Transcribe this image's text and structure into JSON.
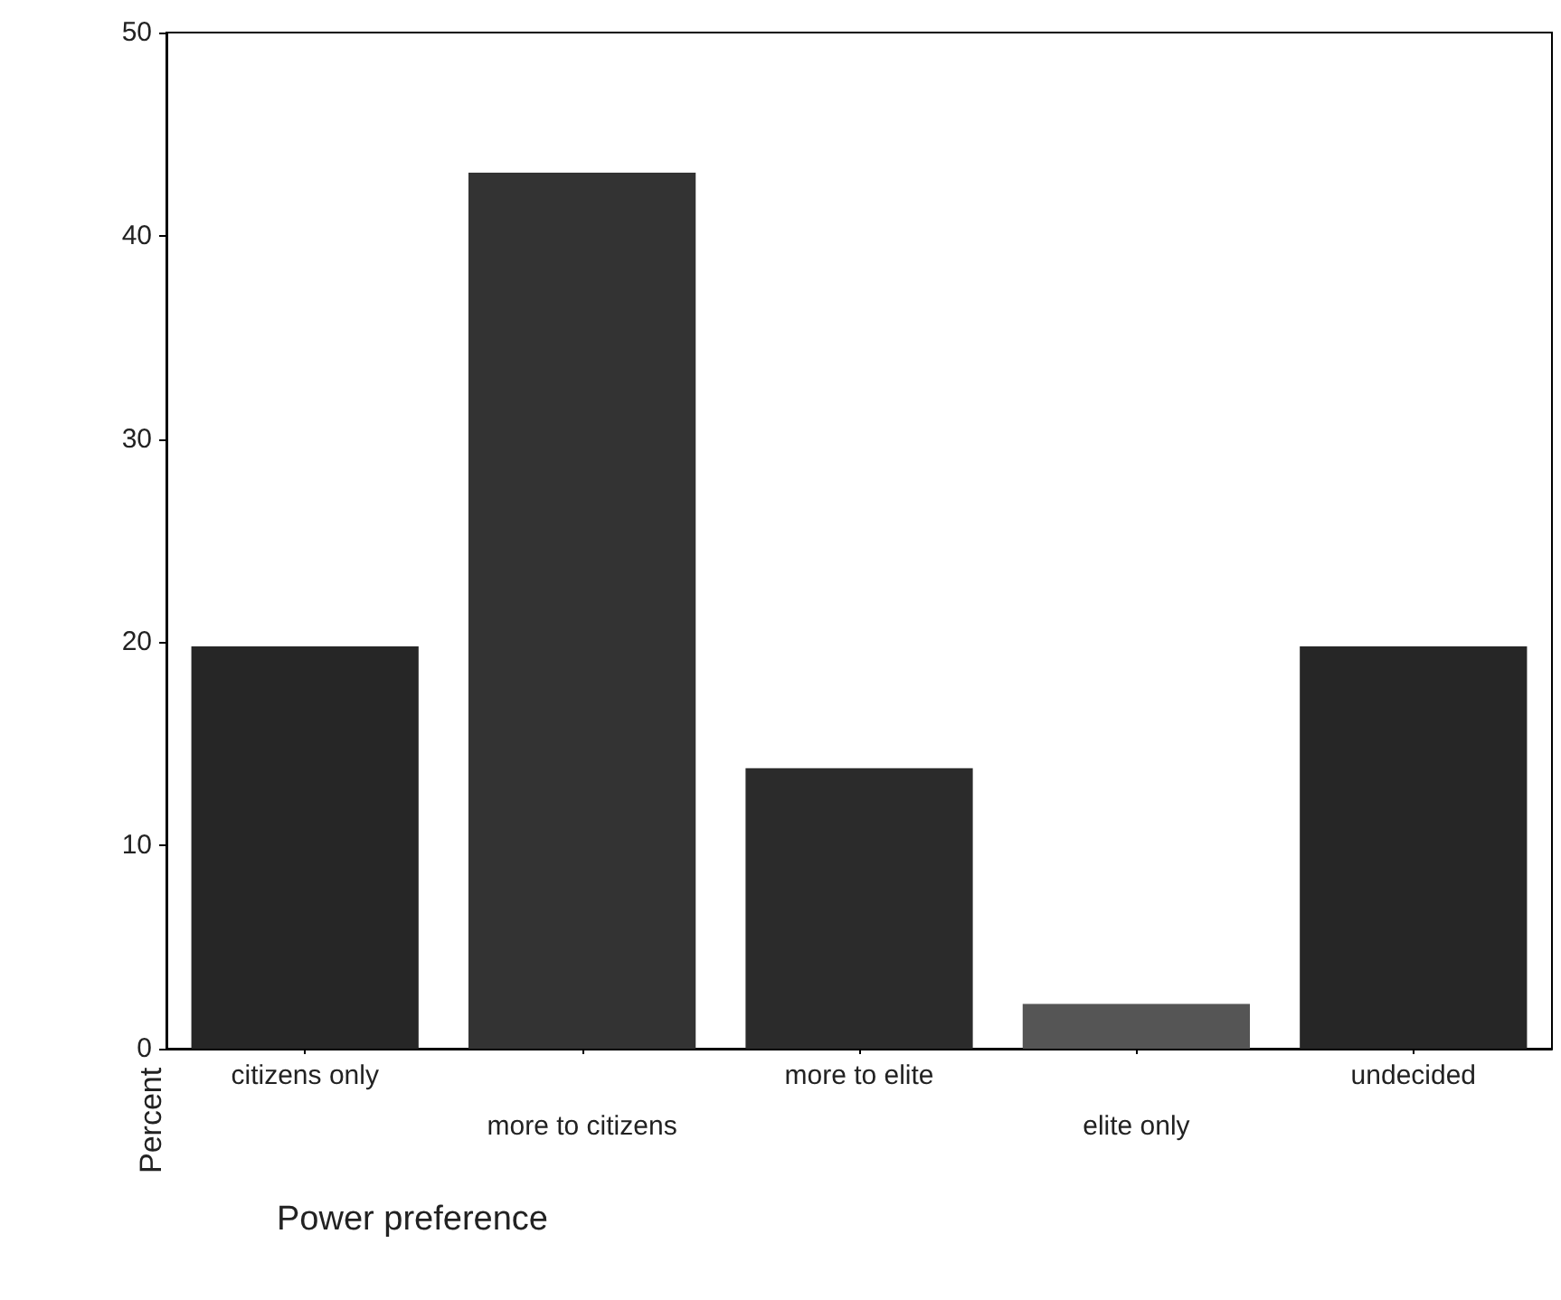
{
  "chart_data": {
    "type": "bar",
    "xlabel": "Power preference",
    "ylabel": "Percent",
    "categories": [
      "citizens only",
      "more to citizens",
      "more to elite",
      "elite only",
      "undecided"
    ],
    "values": [
      19.8,
      43.1,
      13.8,
      2.2,
      19.8
    ],
    "colors": [
      "#262626",
      "#333333",
      "#2b2b2b",
      "#555555",
      "#262626"
    ],
    "ylim": [
      0,
      50
    ],
    "yticks": [
      0,
      10,
      20,
      30,
      40,
      50
    ],
    "grid": false
  }
}
